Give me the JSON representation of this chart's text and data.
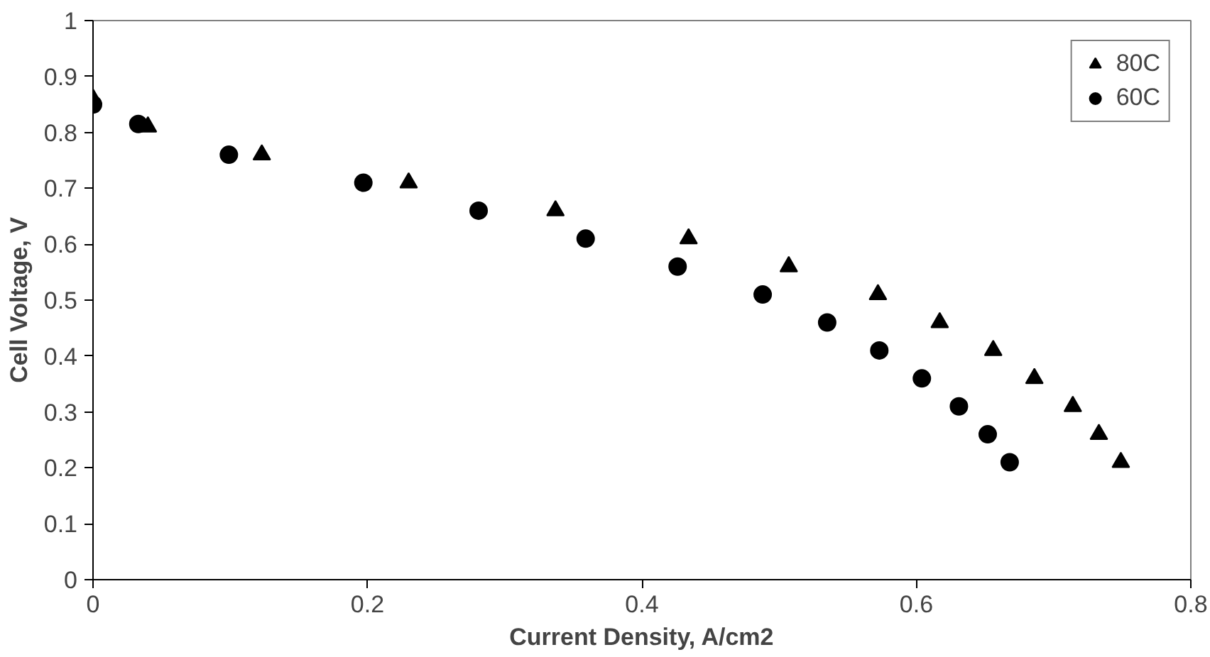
{
  "chart_data": {
    "type": "scatter",
    "xlabel": "Current Density, A/cm2",
    "ylabel": "Cell Voltage, V",
    "xlim": [
      0,
      0.8
    ],
    "xticks": [
      0,
      0.2,
      0.4,
      0.6,
      0.8
    ],
    "ylim": [
      0,
      1
    ],
    "yticks": [
      0,
      0.1,
      0.2,
      0.3,
      0.4,
      0.5,
      0.6,
      0.7,
      0.8,
      0.9,
      1
    ],
    "grid": false,
    "legend": "top right",
    "series": [
      {
        "name": "80C",
        "color": "#000000",
        "marker": "triangle",
        "x": [
          0,
          0.04,
          0.123,
          0.23,
          0.337,
          0.434,
          0.507,
          0.572,
          0.617,
          0.656,
          0.686,
          0.714,
          0.733,
          0.749
        ],
        "values": [
          0.86,
          0.81,
          0.76,
          0.71,
          0.66,
          0.61,
          0.56,
          0.51,
          0.46,
          0.41,
          0.36,
          0.31,
          0.26,
          0.21
        ]
      },
      {
        "name": "60C",
        "color": "#000000",
        "marker": "circle",
        "x": [
          0,
          0.033,
          0.099,
          0.197,
          0.281,
          0.359,
          0.426,
          0.488,
          0.535,
          0.573,
          0.604,
          0.631,
          0.652,
          0.668
        ],
        "values": [
          0.85,
          0.815,
          0.76,
          0.71,
          0.66,
          0.61,
          0.56,
          0.51,
          0.46,
          0.41,
          0.36,
          0.31,
          0.26,
          0.21
        ]
      }
    ]
  }
}
